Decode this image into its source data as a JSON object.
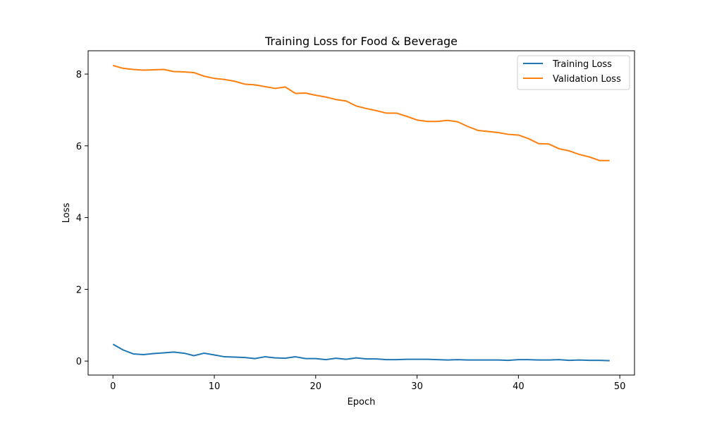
{
  "chart_data": {
    "type": "line",
    "title": "Training Loss for Food & Beverage",
    "xlabel": "Epoch",
    "ylabel": "Loss",
    "xlim": [
      -2.45,
      51.45
    ],
    "ylim": [
      -0.39,
      8.65
    ],
    "xticks": [
      0,
      10,
      20,
      30,
      40,
      50
    ],
    "yticks": [
      0,
      2,
      4,
      6,
      8
    ],
    "grid": false,
    "legend_position": "top-right",
    "x": [
      0,
      1,
      2,
      3,
      4,
      5,
      6,
      7,
      8,
      9,
      10,
      11,
      12,
      13,
      14,
      15,
      16,
      17,
      18,
      19,
      20,
      21,
      22,
      23,
      24,
      25,
      26,
      27,
      28,
      29,
      30,
      31,
      32,
      33,
      34,
      35,
      36,
      37,
      38,
      39,
      40,
      41,
      42,
      43,
      44,
      45,
      46,
      47,
      48,
      49
    ],
    "series": [
      {
        "name": "Training Loss",
        "color": "#1f77b4",
        "values": [
          0.47,
          0.31,
          0.2,
          0.18,
          0.21,
          0.23,
          0.25,
          0.22,
          0.15,
          0.22,
          0.17,
          0.12,
          0.11,
          0.1,
          0.07,
          0.12,
          0.09,
          0.08,
          0.12,
          0.07,
          0.07,
          0.04,
          0.08,
          0.05,
          0.09,
          0.06,
          0.06,
          0.04,
          0.04,
          0.05,
          0.05,
          0.05,
          0.04,
          0.03,
          0.04,
          0.03,
          0.03,
          0.03,
          0.03,
          0.02,
          0.04,
          0.04,
          0.03,
          0.03,
          0.04,
          0.02,
          0.03,
          0.02,
          0.02,
          0.01
        ]
      },
      {
        "name": "Validation Loss",
        "color": "#ff7f0e",
        "values": [
          8.24,
          8.16,
          8.13,
          8.11,
          8.12,
          8.13,
          8.07,
          8.06,
          8.04,
          7.94,
          7.88,
          7.85,
          7.8,
          7.72,
          7.7,
          7.65,
          7.6,
          7.64,
          7.46,
          7.47,
          7.41,
          7.36,
          7.29,
          7.25,
          7.11,
          7.04,
          6.98,
          6.91,
          6.91,
          6.82,
          6.72,
          6.68,
          6.68,
          6.71,
          6.67,
          6.54,
          6.43,
          6.4,
          6.37,
          6.32,
          6.3,
          6.2,
          6.06,
          6.05,
          5.92,
          5.86,
          5.76,
          5.69,
          5.59,
          5.59
        ]
      }
    ]
  }
}
